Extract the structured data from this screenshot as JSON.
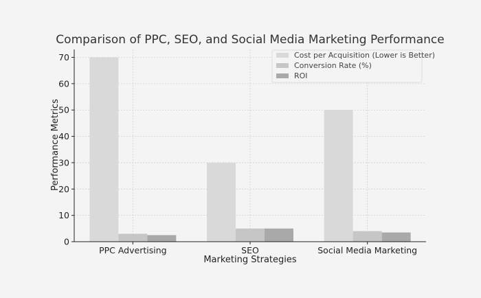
{
  "chart_data": {
    "type": "bar",
    "title": "Comparison of PPC, SEO, and Social Media Marketing Performance",
    "xlabel": "Marketing Strategies",
    "ylabel": "Performance Metrics",
    "categories": [
      "PPC Advertising",
      "SEO",
      "Social Media Marketing"
    ],
    "series": [
      {
        "name": "Cost per Acquisition (Lower is Better)",
        "values": [
          70,
          30,
          50
        ],
        "color": "#d9d9d9"
      },
      {
        "name": "Conversion Rate (%)",
        "values": [
          3,
          5,
          4
        ],
        "color": "#c6c6c6"
      },
      {
        "name": "ROI",
        "values": [
          2.5,
          5,
          3.5
        ],
        "color": "#a9a9a9"
      }
    ],
    "ylim": [
      0,
      73
    ],
    "yticks": [
      0,
      10,
      20,
      30,
      40,
      50,
      60,
      70
    ],
    "grid": true,
    "legend_position": "top-right"
  }
}
